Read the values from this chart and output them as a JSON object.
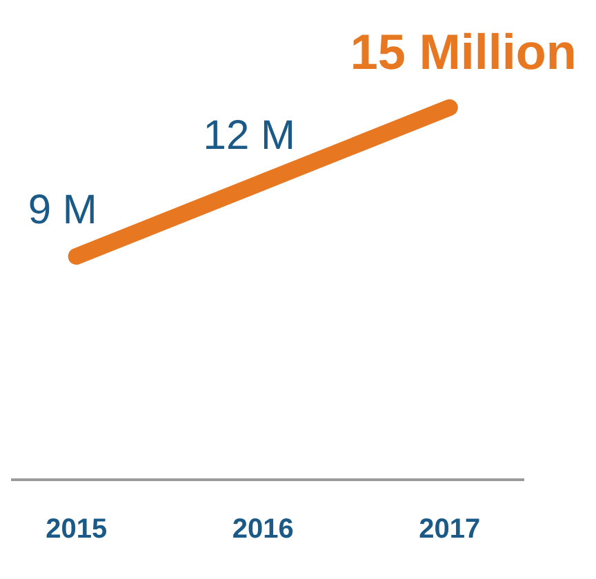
{
  "chart_data": {
    "type": "line",
    "categories": [
      "2015",
      "2016",
      "2017"
    ],
    "series": [
      {
        "color": "#e87722",
        "values": [
          9,
          12,
          15
        ],
        "value_labels": [
          "9 M",
          "12 M",
          "15 Million"
        ]
      }
    ],
    "tick_labels": "x",
    "legend": false,
    "grid": false,
    "marker": "none",
    "line_style": "solid"
  }
}
